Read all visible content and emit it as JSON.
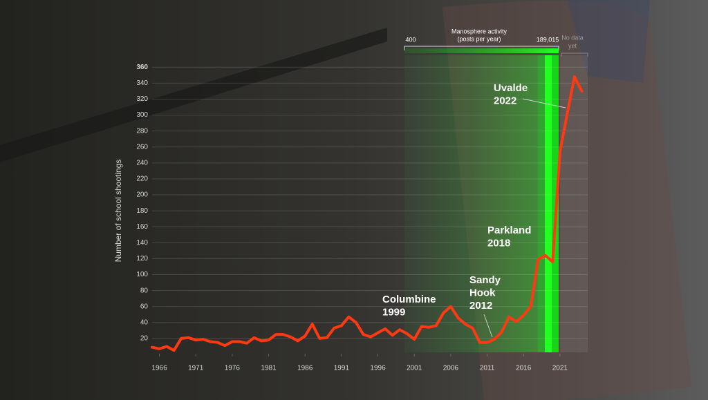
{
  "chart_data": {
    "type": "line",
    "y_label": "Number of school shootings",
    "x": [
      1965,
      1966,
      1967,
      1968,
      1969,
      1970,
      1971,
      1972,
      1973,
      1974,
      1975,
      1976,
      1977,
      1978,
      1979,
      1980,
      1981,
      1982,
      1983,
      1984,
      1985,
      1986,
      1987,
      1988,
      1989,
      1990,
      1991,
      1992,
      1993,
      1994,
      1995,
      1996,
      1997,
      1998,
      1999,
      2000,
      2001,
      2002,
      2003,
      2004,
      2005,
      2006,
      2007,
      2008,
      2009,
      2010,
      2011,
      2012,
      2013,
      2014,
      2015,
      2016,
      2017,
      2018,
      2019,
      2020,
      2021,
      2022,
      2023,
      2024
    ],
    "series": [
      {
        "color": "#ff3a12",
        "values": [
          9,
          7,
          10,
          5,
          20,
          21,
          18,
          19,
          16,
          15,
          11,
          16,
          16,
          14,
          21,
          17,
          18,
          25,
          25,
          22,
          17,
          23,
          38,
          20,
          21,
          33,
          36,
          47,
          40,
          25,
          22,
          27,
          32,
          24,
          31,
          26,
          19,
          35,
          34,
          36,
          52,
          60,
          46,
          38,
          33,
          15,
          15,
          19,
          28,
          47,
          41,
          49,
          60,
          119,
          124,
          116,
          254,
          302,
          348,
          330
        ]
      }
    ],
    "xlim": [
      1965,
      2025
    ],
    "ylim": [
      0,
      360
    ],
    "xticks": [
      1966,
      1971,
      1976,
      1981,
      1986,
      1991,
      1996,
      2001,
      2006,
      2011,
      2016,
      2021
    ],
    "yticks": [
      20,
      40,
      60,
      80,
      100,
      120,
      140,
      160,
      180,
      200,
      220,
      240,
      260,
      280,
      300,
      320,
      340,
      360
    ],
    "grid": true,
    "annotations": [
      {
        "lines": [
          "Columbine",
          "1999"
        ]
      },
      {
        "lines": [
          "Sandy",
          "Hook",
          "2012"
        ]
      },
      {
        "lines": [
          "Parkland",
          "2018"
        ]
      },
      {
        "lines": [
          "Uvalde",
          "2022"
        ]
      }
    ],
    "activity_legend": {
      "title": [
        "Manosphere activity",
        "(posts per year)"
      ],
      "min": 400,
      "max": {
        "value": 189015,
        "label": "189,015"
      },
      "no_data": [
        "No data",
        "yet"
      ]
    }
  }
}
